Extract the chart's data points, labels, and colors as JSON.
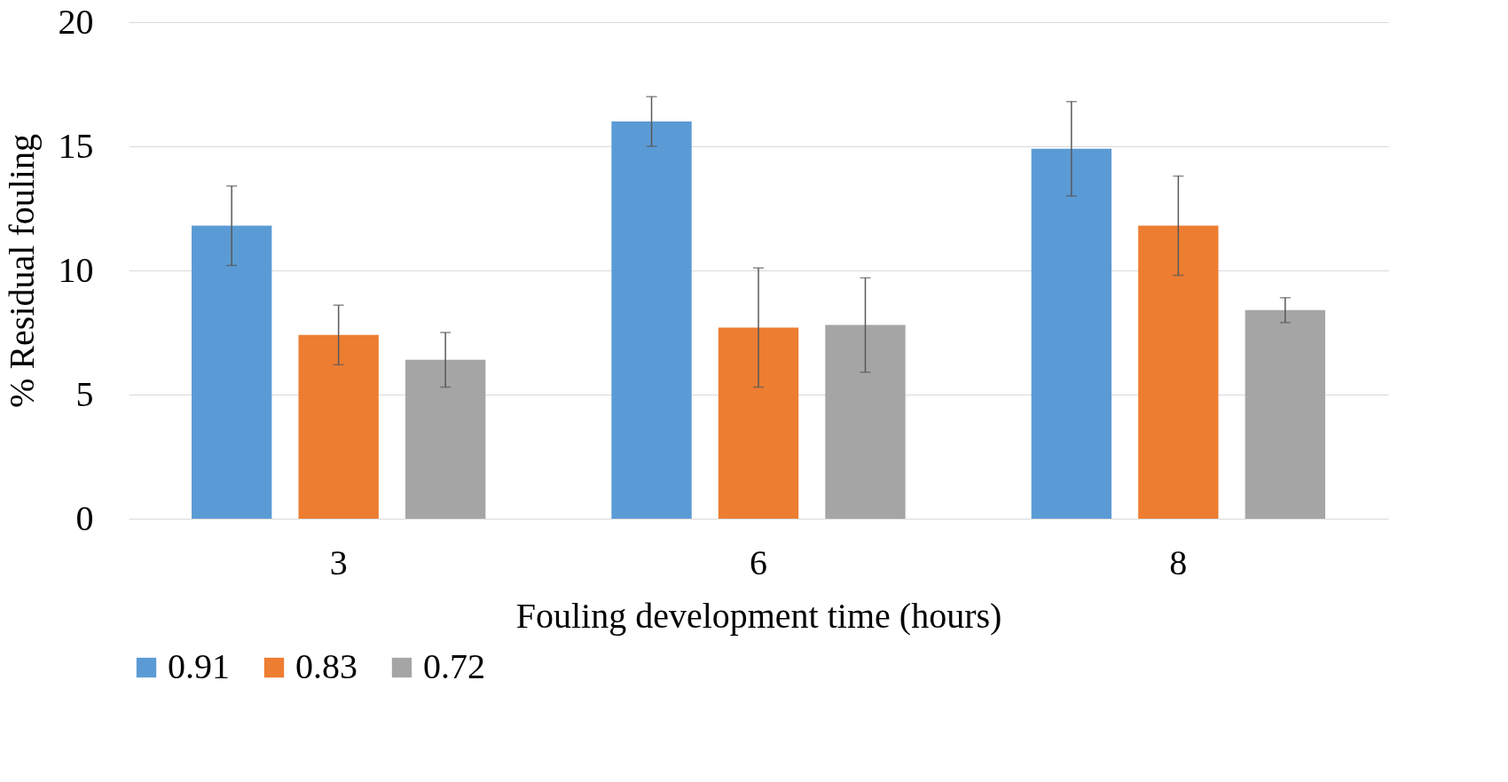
{
  "chart_data": {
    "type": "bar",
    "xlabel": "Fouling development time (hours)",
    "ylabel": "% Residual fouling",
    "categories": [
      "3",
      "6",
      "8"
    ],
    "series": [
      {
        "name": "0.91",
        "color": "#5b9bd5",
        "values": [
          11.8,
          16.0,
          14.9
        ],
        "errors": [
          1.6,
          1.0,
          1.9
        ]
      },
      {
        "name": "0.83",
        "color": "#ed7d31",
        "values": [
          7.4,
          7.7,
          11.8
        ],
        "errors": [
          1.2,
          2.4,
          2.0
        ]
      },
      {
        "name": "0.72",
        "color": "#a5a5a5",
        "values": [
          6.4,
          7.8,
          8.4
        ],
        "errors": [
          1.1,
          1.9,
          0.5
        ]
      }
    ],
    "ylim": [
      0,
      20
    ],
    "yticks": [
      0,
      5,
      10,
      15,
      20
    ],
    "grid": "y",
    "legend": "bottom"
  }
}
